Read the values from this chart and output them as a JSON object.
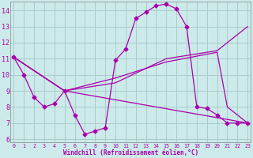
{
  "background_color": "#cceaea",
  "grid_color": "#aacccc",
  "line_color": "#aa00aa",
  "xlim_min": -0.3,
  "xlim_max": 23.3,
  "ylim_min": 5.8,
  "ylim_max": 14.55,
  "yticks": [
    6,
    7,
    8,
    9,
    10,
    11,
    12,
    13,
    14
  ],
  "xticks": [
    0,
    1,
    2,
    3,
    4,
    5,
    6,
    7,
    8,
    9,
    10,
    11,
    12,
    13,
    14,
    15,
    16,
    17,
    18,
    19,
    20,
    21,
    22,
    23
  ],
  "xlabel": "Windchill (Refroidissement éolien,°C)",
  "curve1_x": [
    0,
    1,
    2,
    3,
    4,
    5,
    6,
    7,
    8,
    9,
    10,
    11,
    12,
    13,
    14,
    15,
    16,
    17,
    18,
    19,
    20,
    21,
    22,
    23
  ],
  "curve1_y": [
    11.1,
    10.0,
    8.6,
    8.0,
    8.2,
    9.0,
    7.5,
    6.3,
    6.5,
    6.7,
    10.9,
    11.6,
    13.5,
    13.9,
    14.3,
    14.4,
    14.1,
    13.0,
    8.0,
    7.9,
    7.5,
    7.0,
    7.0,
    7.0
  ],
  "curve2_x": [
    0,
    5,
    23
  ],
  "curve2_y": [
    11.1,
    9.0,
    7.0
  ],
  "curve3_x": [
    0,
    5,
    10,
    15,
    20,
    23
  ],
  "curve3_y": [
    11.1,
    9.0,
    9.5,
    11.0,
    11.5,
    13.0
  ],
  "curve4_x": [
    0,
    5,
    10,
    15,
    20,
    21,
    22,
    23
  ],
  "curve4_y": [
    11.1,
    9.0,
    9.8,
    10.8,
    11.4,
    8.0,
    7.5,
    7.0
  ]
}
